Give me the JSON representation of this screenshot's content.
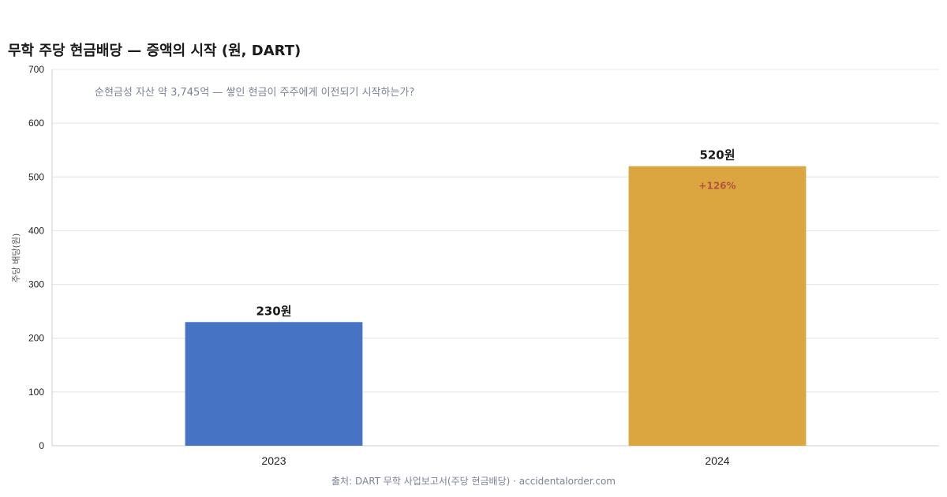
{
  "chart_data": {
    "type": "bar",
    "title": "무학 주당 현금배당 — 증액의 시작 (원, DART)",
    "subtitle": "순현금성 자산 약 3,745억 — 쌓인 현금이 주주에게 이전되기 시작하는가?",
    "xlabel": "",
    "ylabel": "주당 배당(원)",
    "categories": [
      "2023",
      "2024"
    ],
    "values": [
      230,
      520
    ],
    "value_labels": [
      "230원",
      "520원"
    ],
    "change_labels": [
      "",
      "+126%"
    ],
    "bar_colors": [
      "#4773c4",
      "#dba540"
    ],
    "change_color": "#b5543a",
    "ylim": [
      0,
      700
    ],
    "yticks": [
      0,
      100,
      200,
      300,
      400,
      500,
      600,
      700
    ],
    "grid": true,
    "legend": "none",
    "source": "출처: DART 무학 사업보고서(주당 현금배당) · accidentalorder.com"
  }
}
